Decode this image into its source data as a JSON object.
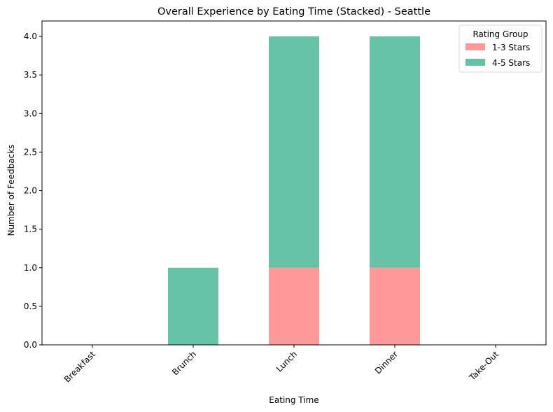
{
  "chart_data": {
    "type": "bar",
    "stacked": true,
    "title": "Overall Experience by Eating Time (Stacked) - Seattle",
    "xlabel": "Eating Time",
    "ylabel": "Number of Feedbacks",
    "categories": [
      "Breakfast",
      "Brunch",
      "Lunch",
      "Dinner",
      "Take-Out"
    ],
    "series": [
      {
        "name": "1-3 Stars",
        "values": [
          0,
          0,
          1,
          1,
          0
        ],
        "color": "#ff9999"
      },
      {
        "name": "4-5 Stars",
        "values": [
          0,
          1,
          3,
          3,
          0
        ],
        "color": "#66c2a5"
      }
    ],
    "ylim": [
      0,
      4.2
    ],
    "yticks": [
      "0.0",
      "0.5",
      "1.0",
      "1.5",
      "2.0",
      "2.5",
      "3.0",
      "3.5",
      "4.0"
    ],
    "grid": false,
    "legend": {
      "title": "Rating Group",
      "placement": "top-right"
    }
  }
}
